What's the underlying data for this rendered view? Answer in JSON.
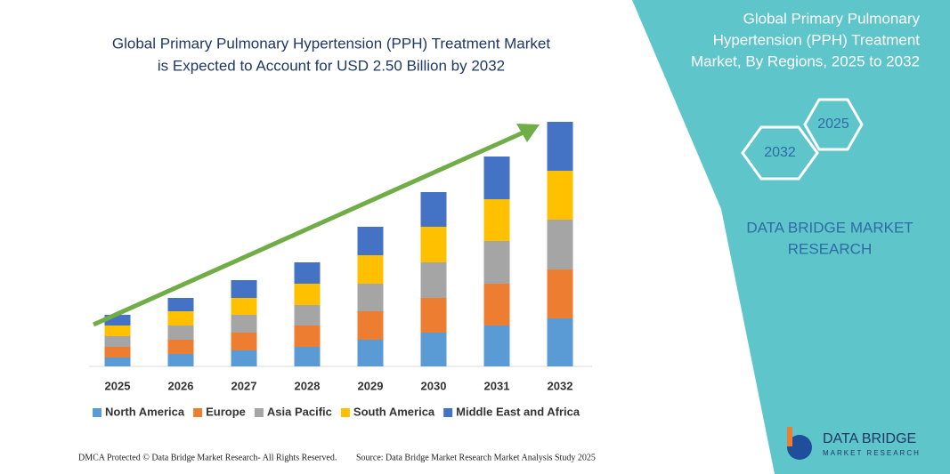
{
  "chart_data": {
    "type": "stacked_bar",
    "title": [
      "Global Primary Pulmonary Hypertension (PPH) Treatment Market",
      "is Expected to Account for USD 2.50 Billion by 2032"
    ],
    "categories": [
      "2025",
      "2026",
      "2027",
      "2028",
      "2029",
      "2030",
      "2031",
      "2032"
    ],
    "series": [
      {
        "name": "North America",
        "color": "#5b9bd5",
        "values": [
          10,
          14,
          18,
          22,
          30,
          38,
          46,
          54
        ]
      },
      {
        "name": "Europe",
        "color": "#ed7d31",
        "values": [
          12,
          16,
          20,
          24,
          32,
          39,
          47,
          55
        ]
      },
      {
        "name": "Asia Pacific",
        "color": "#a5a5a5",
        "values": [
          12,
          16,
          20,
          23,
          31,
          40,
          48,
          56
        ]
      },
      {
        "name": "South America",
        "color": "#ffc000",
        "values": [
          12,
          16,
          19,
          24,
          32,
          40,
          47,
          55
        ]
      },
      {
        "name": "Middle East and Africa",
        "color": "#4472c4",
        "values": [
          12,
          15,
          20,
          24,
          32,
          39,
          48,
          55
        ]
      }
    ],
    "ylim": [
      0,
      275
    ]
  },
  "side_panel": {
    "title": [
      "Global Primary Pulmonary",
      "Hypertension (PPH) Treatment",
      "Market, By Regions, 2025 to 2032"
    ],
    "hexagons": [
      "2025",
      "2032"
    ],
    "brand": [
      "DATA BRIDGE MARKET",
      "RESEARCH"
    ],
    "logo": {
      "name": "DATA BRIDGE",
      "tagline": "MARKET RESEARCH"
    }
  },
  "footer": {
    "left": "DMCA Protected © Data Bridge Market Research- All Rights Reserved.",
    "right": "Source: Data Bridge Market Research Market Analysis Study 2025"
  }
}
